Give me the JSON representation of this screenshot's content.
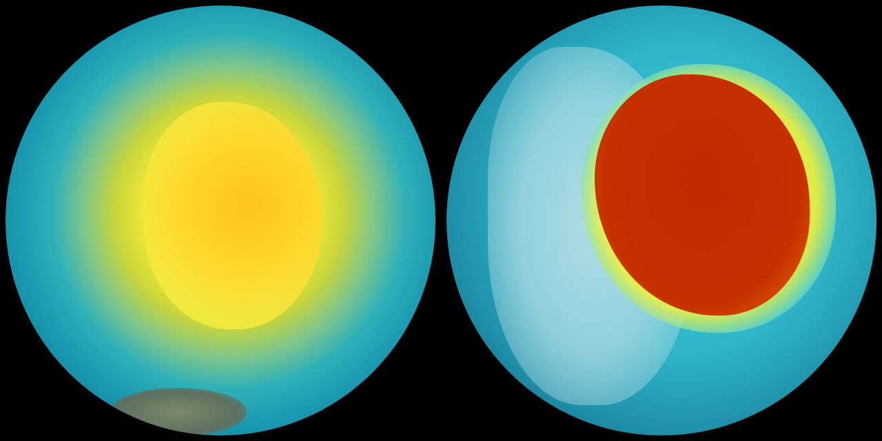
{
  "scene": {
    "panels": [
      {
        "subject": "globe-left",
        "colors": {
          "center": "#ffd21a",
          "mid": "#2fb0b8",
          "edge": "#0d4f6e"
        }
      },
      {
        "subject": "globe-right",
        "colors": {
          "hole": "#c43000",
          "rim": "#ffd000",
          "ocean": "#1f8fa8"
        }
      }
    ],
    "background": "#000000"
  }
}
